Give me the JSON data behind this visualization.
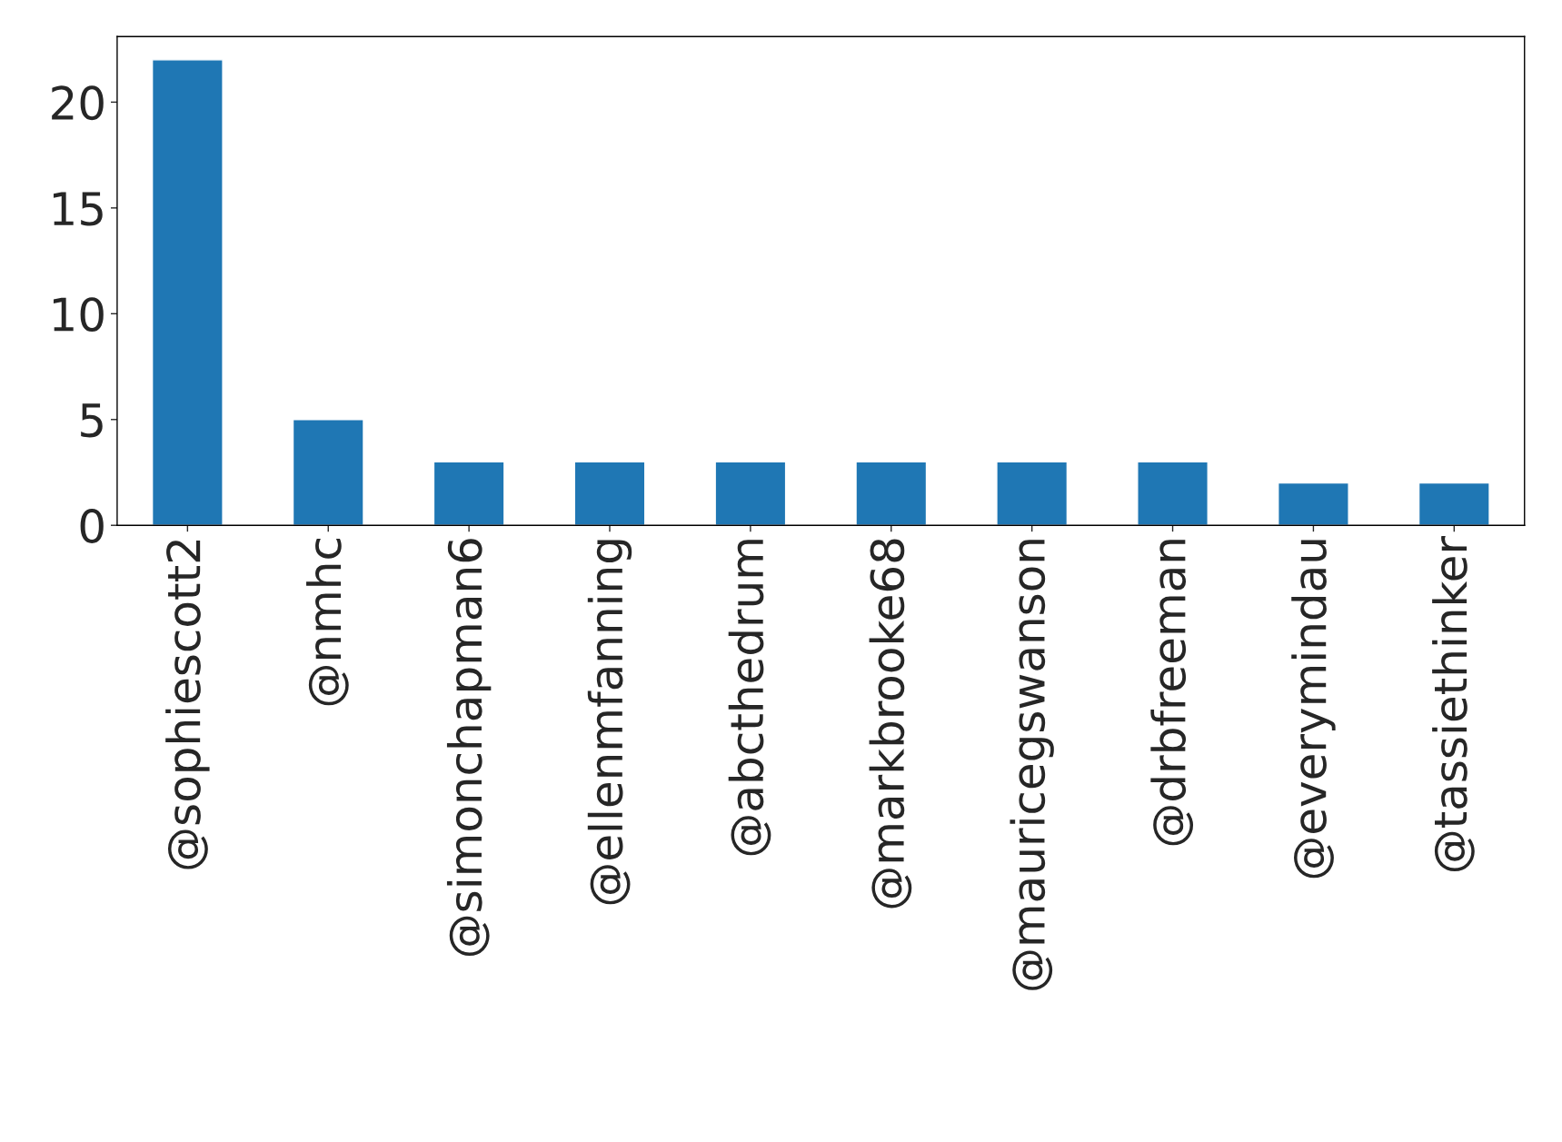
{
  "chart_data": {
    "type": "bar",
    "categories": [
      "@sophiescott2",
      "@nmhc",
      "@simonchapman6",
      "@ellenmfanning",
      "@abcthedrum",
      "@markbrooke68",
      "@mauricegswanson",
      "@drbfreeman",
      "@everymindau",
      "@tassiethinker"
    ],
    "values": [
      22,
      5,
      3,
      3,
      3,
      3,
      3,
      3,
      2,
      2
    ],
    "color": "#1f77b4",
    "ylim": [
      0,
      23.1
    ],
    "yticks": [
      0,
      5,
      10,
      15,
      20
    ],
    "grid": false,
    "legend": false
  }
}
